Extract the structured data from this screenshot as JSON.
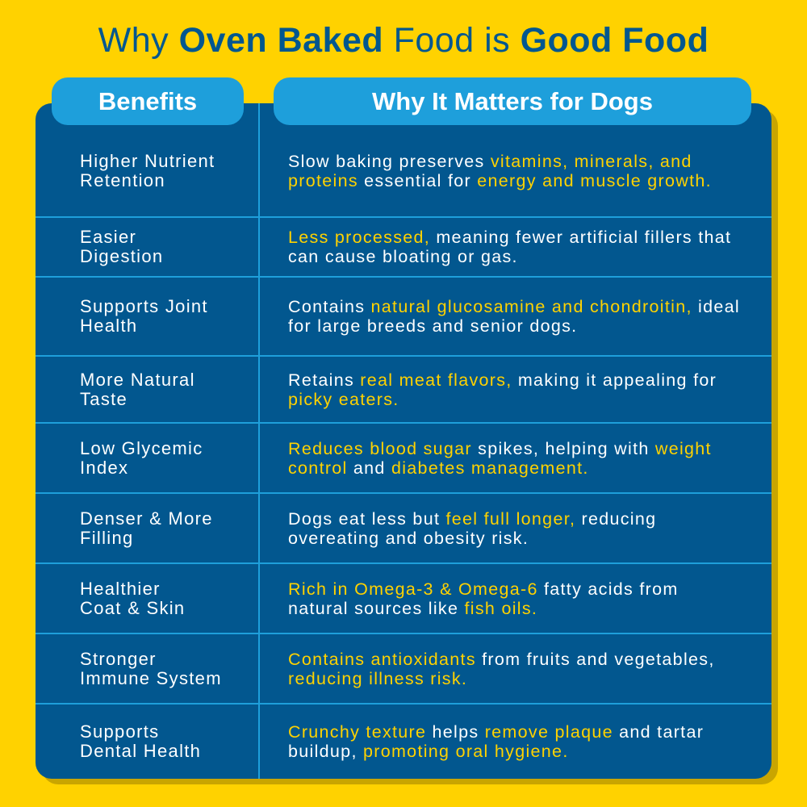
{
  "title": {
    "part1": "Why ",
    "part2": "Oven Baked",
    "part3": " Food is ",
    "part4": "Good Food"
  },
  "headers": {
    "benefits": "Benefits",
    "why": "Why It Matters for Dogs"
  },
  "colors": {
    "background": "#FFD200",
    "table": "#02578F",
    "accent": "#1E9FDB",
    "highlight": "#FFD200"
  },
  "rows": [
    {
      "benefit": [
        "Higher Nutrient",
        "Retention"
      ],
      "desc": [
        {
          "t": "Slow baking preserves "
        },
        {
          "t": "vitamins, minerals, and proteins",
          "hl": true
        },
        {
          "t": " essential for "
        },
        {
          "t": "energy and muscle growth.",
          "hl": true
        }
      ]
    },
    {
      "benefit": [
        "Easier",
        "Digestion"
      ],
      "desc": [
        {
          "t": "Less processed,",
          "hl": true
        },
        {
          "t": " meaning fewer artificial fillers that can cause bloating or gas."
        }
      ]
    },
    {
      "benefit": [
        "Supports Joint",
        "Health"
      ],
      "desc": [
        {
          "t": "Contains "
        },
        {
          "t": "natural glucosamine and chondroitin,",
          "hl": true
        },
        {
          "t": " ideal for large breeds and senior dogs."
        }
      ]
    },
    {
      "benefit": [
        "More Natural",
        "Taste"
      ],
      "desc": [
        {
          "t": "Retains "
        },
        {
          "t": "real meat flavors,",
          "hl": true
        },
        {
          "t": " making it appealing for "
        },
        {
          "t": "picky eaters.",
          "hl": true
        }
      ]
    },
    {
      "benefit": [
        "Low Glycemic",
        "Index"
      ],
      "desc": [
        {
          "t": "Reduces blood sugar",
          "hl": true
        },
        {
          "t": " spikes, helping with "
        },
        {
          "t": "weight control",
          "hl": true
        },
        {
          "t": " and "
        },
        {
          "t": "diabetes management.",
          "hl": true
        }
      ]
    },
    {
      "benefit": [
        "Denser & More",
        "Filling"
      ],
      "desc": [
        {
          "t": "Dogs eat less but "
        },
        {
          "t": "feel full longer,",
          "hl": true
        },
        {
          "t": " reducing overeating and obesity risk."
        }
      ]
    },
    {
      "benefit": [
        "Healthier",
        "Coat & Skin"
      ],
      "desc": [
        {
          "t": "Rich in Omega-3 & Omega-6",
          "hl": true
        },
        {
          "t": " fatty acids from natural sources like "
        },
        {
          "t": "fish oils.",
          "hl": true
        }
      ]
    },
    {
      "benefit": [
        "Stronger",
        "Immune System"
      ],
      "desc": [
        {
          "t": "Contains antioxidants",
          "hl": true
        },
        {
          "t": " from fruits and vegetables, "
        },
        {
          "t": "reducing illness risk.",
          "hl": true
        }
      ]
    },
    {
      "benefit": [
        "Supports",
        "Dental Health"
      ],
      "desc": [
        {
          "t": "Crunchy texture",
          "hl": true
        },
        {
          "t": " helps "
        },
        {
          "t": "remove plaque",
          "hl": true
        },
        {
          "t": " and tartar buildup, "
        },
        {
          "t": "promoting oral hygiene.",
          "hl": true
        }
      ]
    }
  ]
}
